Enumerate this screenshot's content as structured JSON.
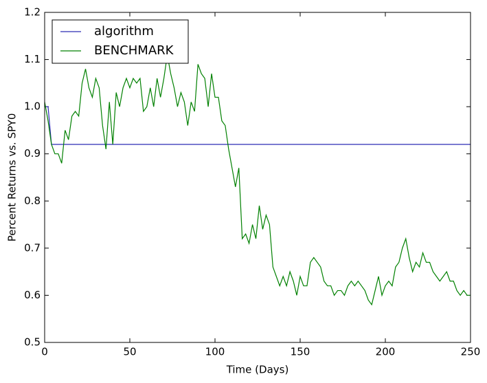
{
  "chart_data": {
    "type": "line",
    "xlabel": "Time (Days)",
    "ylabel": "Percent Returns vs. SPY0",
    "x": [
      0,
      2,
      4,
      6,
      8,
      10,
      12,
      14,
      16,
      18,
      20,
      22,
      24,
      26,
      28,
      30,
      32,
      34,
      36,
      38,
      40,
      42,
      44,
      46,
      48,
      50,
      52,
      54,
      56,
      58,
      60,
      62,
      64,
      66,
      68,
      70,
      72,
      74,
      76,
      78,
      80,
      82,
      84,
      86,
      88,
      90,
      92,
      94,
      96,
      98,
      100,
      102,
      104,
      106,
      108,
      110,
      112,
      114,
      116,
      118,
      120,
      122,
      124,
      126,
      128,
      130,
      132,
      134,
      136,
      138,
      140,
      142,
      144,
      146,
      148,
      150,
      152,
      154,
      156,
      158,
      160,
      162,
      164,
      166,
      168,
      170,
      172,
      174,
      176,
      178,
      180,
      182,
      184,
      186,
      188,
      190,
      192,
      194,
      196,
      198,
      200,
      202,
      204,
      206,
      208,
      210,
      212,
      214,
      216,
      218,
      220,
      222,
      224,
      226,
      228,
      230,
      232,
      234,
      236,
      238,
      240,
      242,
      244,
      246,
      248,
      250
    ],
    "series": [
      {
        "name": "algorithm",
        "color": "#2b2bb5",
        "values": [
          1.0,
          1.0,
          0.92,
          0.92,
          0.92,
          0.92,
          0.92,
          0.92,
          0.92,
          0.92,
          0.92,
          0.92,
          0.92,
          0.92,
          0.92,
          0.92,
          0.92,
          0.92,
          0.92,
          0.92,
          0.92,
          0.92,
          0.92,
          0.92,
          0.92,
          0.92,
          0.92,
          0.92,
          0.92,
          0.92,
          0.92,
          0.92,
          0.92,
          0.92,
          0.92,
          0.92,
          0.92,
          0.92,
          0.92,
          0.92,
          0.92,
          0.92,
          0.92,
          0.92,
          0.92,
          0.92,
          0.92,
          0.92,
          0.92,
          0.92,
          0.92,
          0.92,
          0.92,
          0.92,
          0.92,
          0.92,
          0.92,
          0.92,
          0.92,
          0.92,
          0.92,
          0.92,
          0.92,
          0.92,
          0.92,
          0.92,
          0.92,
          0.92,
          0.92,
          0.92,
          0.92,
          0.92,
          0.92,
          0.92,
          0.92,
          0.92,
          0.92,
          0.92,
          0.92,
          0.92,
          0.92,
          0.92,
          0.92,
          0.92,
          0.92,
          0.92,
          0.92,
          0.92,
          0.92,
          0.92,
          0.92,
          0.92,
          0.92,
          0.92,
          0.92,
          0.92,
          0.92,
          0.92,
          0.92,
          0.92,
          0.92,
          0.92,
          0.92,
          0.92,
          0.92,
          0.92,
          0.92,
          0.92,
          0.92,
          0.92,
          0.92,
          0.92,
          0.92,
          0.92,
          0.92,
          0.92,
          0.92,
          0.92,
          0.92,
          0.92,
          0.92,
          0.92,
          0.92,
          0.92,
          0.92,
          0.92
        ]
      },
      {
        "name": "BENCHMARK",
        "color": "#008000",
        "values": [
          1.01,
          0.97,
          0.92,
          0.9,
          0.9,
          0.88,
          0.95,
          0.93,
          0.98,
          0.99,
          0.98,
          1.05,
          1.08,
          1.04,
          1.02,
          1.06,
          1.04,
          0.96,
          0.91,
          1.01,
          0.92,
          1.03,
          1.0,
          1.04,
          1.06,
          1.04,
          1.06,
          1.05,
          1.06,
          0.99,
          1.0,
          1.04,
          1.0,
          1.06,
          1.02,
          1.06,
          1.11,
          1.07,
          1.04,
          1.0,
          1.03,
          1.01,
          0.96,
          1.01,
          0.99,
          1.09,
          1.07,
          1.06,
          1.0,
          1.07,
          1.02,
          1.02,
          0.97,
          0.96,
          0.91,
          0.87,
          0.83,
          0.87,
          0.72,
          0.73,
          0.71,
          0.75,
          0.72,
          0.79,
          0.74,
          0.77,
          0.75,
          0.66,
          0.64,
          0.62,
          0.64,
          0.62,
          0.65,
          0.63,
          0.6,
          0.64,
          0.62,
          0.62,
          0.67,
          0.68,
          0.67,
          0.66,
          0.63,
          0.62,
          0.62,
          0.6,
          0.61,
          0.61,
          0.6,
          0.62,
          0.63,
          0.62,
          0.63,
          0.62,
          0.61,
          0.59,
          0.58,
          0.61,
          0.64,
          0.6,
          0.62,
          0.63,
          0.62,
          0.66,
          0.67,
          0.7,
          0.72,
          0.68,
          0.65,
          0.67,
          0.66,
          0.69,
          0.67,
          0.67,
          0.65,
          0.64,
          0.63,
          0.64,
          0.65,
          0.63,
          0.63,
          0.61,
          0.6,
          0.61,
          0.6,
          0.6
        ]
      }
    ],
    "xlim": [
      0,
      250
    ],
    "xticks": [
      0,
      50,
      100,
      150,
      200,
      250
    ],
    "ylim": [
      0.5,
      1.2
    ],
    "yticks": [
      0.5,
      0.6,
      0.7,
      0.8,
      0.9,
      {
        "value": 1,
        "label": "1.0"
      },
      1.1,
      1.2
    ],
    "grid": false,
    "legend": "upper left"
  }
}
